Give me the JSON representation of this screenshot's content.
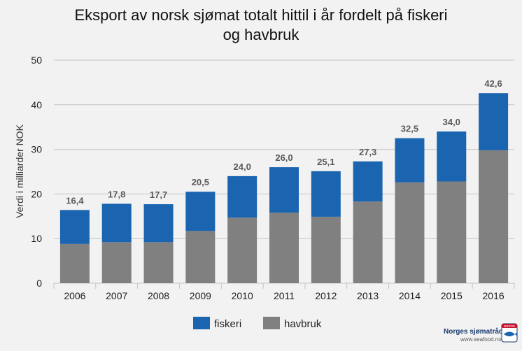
{
  "chart_data": {
    "type": "bar",
    "stacked": true,
    "title_lines": [
      "Eksport av norsk sjømat totalt hittil i år fordelt på fiskeri",
      "og havbruk"
    ],
    "ylabel": "Verdi i milliarder NOK",
    "xlabel": "",
    "ylim": [
      0,
      50
    ],
    "yticks": [
      "0",
      "10",
      "20",
      "30",
      "40",
      "50"
    ],
    "grid": true,
    "legend_position": "bottom",
    "categories": [
      "2006",
      "2007",
      "2008",
      "2009",
      "2010",
      "2011",
      "2012",
      "2013",
      "2014",
      "2015",
      "2016"
    ],
    "series": [
      {
        "name": "havbruk",
        "color": "#808080",
        "values": [
          8.8,
          9.2,
          9.2,
          11.7,
          14.7,
          15.8,
          14.9,
          18.3,
          22.6,
          22.8,
          29.8
        ]
      },
      {
        "name": "fiskeri",
        "color": "#1a64b0",
        "values": [
          7.6,
          8.6,
          8.5,
          8.8,
          9.3,
          10.2,
          10.2,
          9.0,
          9.9,
          11.2,
          12.8
        ]
      }
    ],
    "totals": [
      "16,4",
      "17,8",
      "17,7",
      "20,5",
      "24,0",
      "26,0",
      "25,1",
      "27,3",
      "32,5",
      "34,0",
      "42,6"
    ],
    "legend_order": [
      "fiskeri",
      "havbruk"
    ]
  },
  "branding": {
    "name": "Norges sjømatråd",
    "url": "www.seafood.no",
    "badge_text": "NORGE",
    "accent": "#c8102e"
  }
}
